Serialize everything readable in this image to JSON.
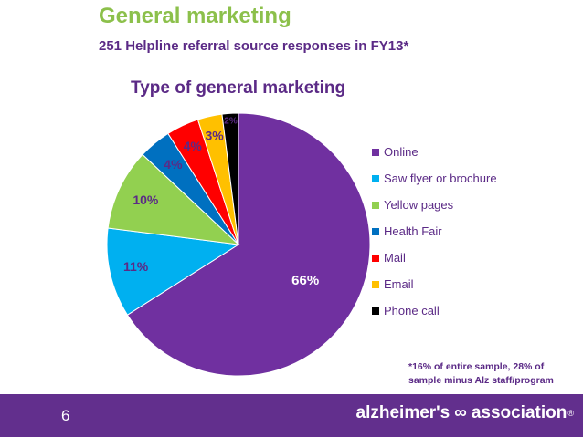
{
  "header": {
    "title": "General marketing",
    "subtitle": "251 Helpline referral source responses in FY13*"
  },
  "chart_data": {
    "type": "pie",
    "title": "Type of general marketing",
    "slices": [
      {
        "label": "Online",
        "value": 66,
        "display": "66%",
        "color": "#7030a0",
        "text_color": "#ffffff"
      },
      {
        "label": "Saw flyer or brochure",
        "value": 11,
        "display": "11%",
        "color": "#00b0f0",
        "text_color": "#5b2a86"
      },
      {
        "label": "Yellow pages",
        "value": 10,
        "display": "10%",
        "color": "#92d050",
        "text_color": "#5b2a86"
      },
      {
        "label": "Health Fair",
        "value": 4,
        "display": "4%",
        "color": "#0070c0",
        "text_color": "#5b2a86"
      },
      {
        "label": "Mail",
        "value": 4,
        "display": "4%",
        "color": "#ff0000",
        "text_color": "#5b2a86"
      },
      {
        "label": "Email",
        "value": 3,
        "display": "3%",
        "color": "#ffc000",
        "text_color": "#5b2a86"
      },
      {
        "label": "Phone call",
        "value": 2,
        "display": "2%",
        "color": "#000000",
        "text_color": "#5b2a86"
      }
    ],
    "legend_position": "right"
  },
  "footnote": {
    "line1": "*16% of entire sample, 28% of",
    "line2": "sample minus Alz staff/program"
  },
  "footer": {
    "page_number": "6",
    "logo_left": "alzheimer's",
    "logo_right": "association",
    "logo_mark": "∞",
    "logo_reg": "®",
    "background_color": "#622f8d"
  }
}
